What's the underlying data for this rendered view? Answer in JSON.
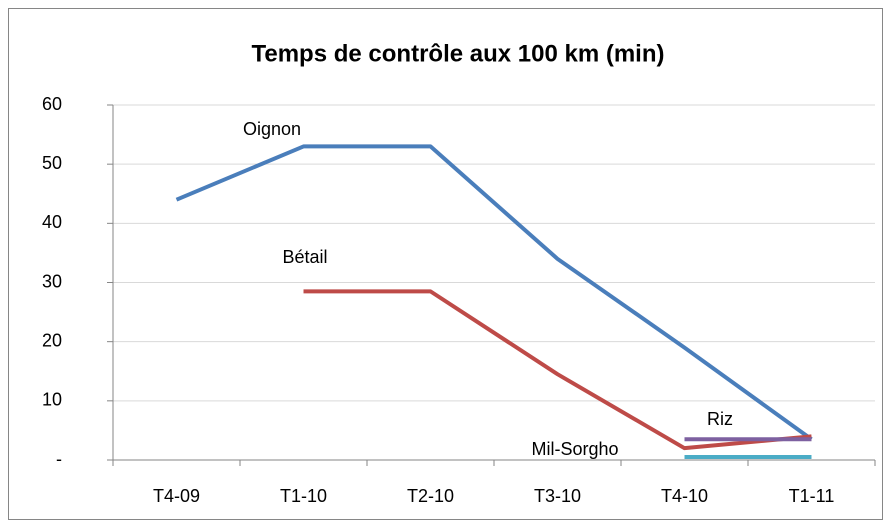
{
  "chart_data": {
    "type": "line",
    "title": "Temps de contrôle aux 100 km (min)",
    "categories": [
      "T4-09",
      "T1-10",
      "T2-10",
      "T3-10",
      "T4-10",
      "T1-11"
    ],
    "series": [
      {
        "name": "Oignon",
        "color": "#4a7ebb",
        "values": [
          44,
          53,
          53,
          34,
          19,
          3.5
        ]
      },
      {
        "name": "Bétail",
        "color": "#be4b48",
        "values": [
          null,
          28.5,
          28.5,
          14.5,
          2,
          4
        ]
      },
      {
        "name": "Riz",
        "color": "#7d60a0",
        "values": [
          null,
          null,
          null,
          null,
          3.5,
          3.5
        ]
      },
      {
        "name": "Mil-Sorgho",
        "color": "#4bacc6",
        "values": [
          null,
          null,
          null,
          null,
          0.5,
          0.5
        ]
      }
    ],
    "ylim": [
      0,
      60
    ],
    "yticks": [
      {
        "value": 0,
        "label": "-"
      },
      10,
      20,
      30,
      40,
      50,
      60
    ],
    "grid": true
  }
}
